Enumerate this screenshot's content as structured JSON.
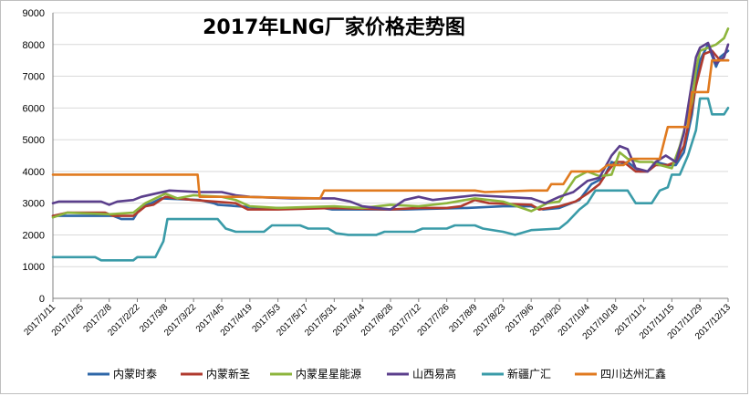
{
  "chart_data": {
    "type": "line",
    "title": "2017年LNG厂家价格走势图",
    "xlabel": "",
    "ylabel": "",
    "ylim": [
      0,
      9000
    ],
    "yticks": [
      0,
      1000,
      2000,
      3000,
      4000,
      5000,
      6000,
      7000,
      8000,
      9000
    ],
    "x_range": [
      "2017/1/11",
      "2017/12/13"
    ],
    "x_ticks": [
      "2017/1/11",
      "2017/1/25",
      "2017/2/8",
      "2017/2/22",
      "2017/3/8",
      "2017/3/22",
      "2017/4/5",
      "2017/4/19",
      "2017/5/3",
      "2017/5/17",
      "2017/5/31",
      "2017/6/14",
      "2017/6/28",
      "2017/7/12",
      "2017/7/26",
      "2017/8/9",
      "2017/8/23",
      "2017/9/6",
      "2017/9/20",
      "2017/10/4",
      "2017/10/18",
      "2017/11/1",
      "2017/11/15",
      "2017/11/29",
      "2017/12/13"
    ],
    "grid": "horizontal",
    "legend_position": "bottom",
    "series": [
      {
        "name": "内蒙时泰",
        "color": "#2e67a8",
        "points": [
          [
            "2017/1/11",
            2600
          ],
          [
            "2017/2/10",
            2600
          ],
          [
            "2017/2/14",
            2500
          ],
          [
            "2017/2/20",
            2500
          ],
          [
            "2017/2/24",
            2900
          ],
          [
            "2017/3/1",
            3000
          ],
          [
            "2017/3/6",
            3150
          ],
          [
            "2017/3/25",
            3100
          ],
          [
            "2017/4/1",
            3000
          ],
          [
            "2017/4/3",
            2950
          ],
          [
            "2017/4/25",
            2850
          ],
          [
            "2017/5/25",
            2850
          ],
          [
            "2017/5/30",
            2800
          ],
          [
            "2017/6/10",
            2800
          ],
          [
            "2017/7/5",
            2800
          ],
          [
            "2017/8/5",
            2850
          ],
          [
            "2017/8/23",
            2900
          ],
          [
            "2017/9/6",
            2900
          ],
          [
            "2017/9/12",
            2800
          ],
          [
            "2017/9/20",
            2850
          ],
          [
            "2017/9/30",
            3100
          ],
          [
            "2017/10/6",
            3600
          ],
          [
            "2017/10/12",
            3800
          ],
          [
            "2017/10/16",
            4300
          ],
          [
            "2017/10/20",
            4200
          ],
          [
            "2017/10/24",
            4300
          ],
          [
            "2017/10/30",
            4000
          ],
          [
            "2017/11/3",
            4000
          ],
          [
            "2017/11/7",
            4300
          ],
          [
            "2017/11/13",
            4200
          ],
          [
            "2017/11/17",
            4200
          ],
          [
            "2017/11/21",
            4600
          ],
          [
            "2017/11/25",
            5800
          ],
          [
            "2017/11/27",
            6800
          ],
          [
            "2017/11/29",
            7500
          ],
          [
            "2017/12/3",
            8000
          ],
          [
            "2017/12/7",
            7300
          ],
          [
            "2017/12/9",
            7600
          ],
          [
            "2017/12/13",
            7800
          ]
        ]
      },
      {
        "name": "内蒙新圣",
        "color": "#b03a2e",
        "points": [
          [
            "2017/1/11",
            2600
          ],
          [
            "2017/1/18",
            2700
          ],
          [
            "2017/2/6",
            2700
          ],
          [
            "2017/2/10",
            2600
          ],
          [
            "2017/2/20",
            2600
          ],
          [
            "2017/2/26",
            2900
          ],
          [
            "2017/3/2",
            2950
          ],
          [
            "2017/3/8",
            3200
          ],
          [
            "2017/3/14",
            3150
          ],
          [
            "2017/3/22",
            3100
          ],
          [
            "2017/4/12",
            3000
          ],
          [
            "2017/4/18",
            2800
          ],
          [
            "2017/5/3",
            2800
          ],
          [
            "2017/5/31",
            2850
          ],
          [
            "2017/6/28",
            2800
          ],
          [
            "2017/7/12",
            2850
          ],
          [
            "2017/7/26",
            2850
          ],
          [
            "2017/8/2",
            2900
          ],
          [
            "2017/8/9",
            3100
          ],
          [
            "2017/8/16",
            3000
          ],
          [
            "2017/9/6",
            2950
          ],
          [
            "2017/9/10",
            2800
          ],
          [
            "2017/9/20",
            2900
          ],
          [
            "2017/9/28",
            3050
          ],
          [
            "2017/10/4",
            3300
          ],
          [
            "2017/10/10",
            3600
          ],
          [
            "2017/10/14",
            4000
          ],
          [
            "2017/10/18",
            4300
          ],
          [
            "2017/10/22",
            4300
          ],
          [
            "2017/10/28",
            4000
          ],
          [
            "2017/11/3",
            4000
          ],
          [
            "2017/11/7",
            4200
          ],
          [
            "2017/11/13",
            4200
          ],
          [
            "2017/11/17",
            4300
          ],
          [
            "2017/11/21",
            4800
          ],
          [
            "2017/11/25",
            6000
          ],
          [
            "2017/11/27",
            6700
          ],
          [
            "2017/11/29",
            7200
          ],
          [
            "2017/12/1",
            7700
          ],
          [
            "2017/12/5",
            7800
          ],
          [
            "2017/12/9",
            7500
          ],
          [
            "2017/12/13",
            7500
          ]
        ]
      },
      {
        "name": "内蒙星星能源",
        "color": "#8db53c",
        "points": [
          [
            "2017/1/11",
            2550
          ],
          [
            "2017/1/18",
            2700
          ],
          [
            "2017/2/8",
            2650
          ],
          [
            "2017/2/20",
            2700
          ],
          [
            "2017/2/26",
            3000
          ],
          [
            "2017/3/8",
            3300
          ],
          [
            "2017/3/14",
            3150
          ],
          [
            "2017/3/22",
            3250
          ],
          [
            "2017/4/5",
            3200
          ],
          [
            "2017/4/12",
            3100
          ],
          [
            "2017/4/19",
            2900
          ],
          [
            "2017/5/3",
            2850
          ],
          [
            "2017/5/31",
            2900
          ],
          [
            "2017/6/14",
            2850
          ],
          [
            "2017/6/28",
            2950
          ],
          [
            "2017/7/12",
            2900
          ],
          [
            "2017/7/26",
            3000
          ],
          [
            "2017/8/9",
            3150
          ],
          [
            "2017/8/16",
            3100
          ],
          [
            "2017/8/23",
            3050
          ],
          [
            "2017/9/6",
            2750
          ],
          [
            "2017/9/14",
            3000
          ],
          [
            "2017/9/20",
            3050
          ],
          [
            "2017/9/28",
            3800
          ],
          [
            "2017/10/4",
            4000
          ],
          [
            "2017/10/10",
            3850
          ],
          [
            "2017/10/16",
            3900
          ],
          [
            "2017/10/20",
            4600
          ],
          [
            "2017/10/24",
            4400
          ],
          [
            "2017/10/30",
            4300
          ],
          [
            "2017/11/5",
            4300
          ],
          [
            "2017/11/9",
            4200
          ],
          [
            "2017/11/15",
            4100
          ],
          [
            "2017/11/19",
            4800
          ],
          [
            "2017/11/25",
            6200
          ],
          [
            "2017/11/27",
            7200
          ],
          [
            "2017/11/29",
            7800
          ],
          [
            "2017/12/3",
            7900
          ],
          [
            "2017/12/7",
            8000
          ],
          [
            "2017/12/11",
            8200
          ],
          [
            "2017/12/13",
            8500
          ]
        ]
      },
      {
        "name": "山西易高",
        "color": "#5b3f8c",
        "points": [
          [
            "2017/1/11",
            3000
          ],
          [
            "2017/1/14",
            3050
          ],
          [
            "2017/2/4",
            3050
          ],
          [
            "2017/2/8",
            2950
          ],
          [
            "2017/2/12",
            3050
          ],
          [
            "2017/2/20",
            3100
          ],
          [
            "2017/2/24",
            3200
          ],
          [
            "2017/3/3",
            3300
          ],
          [
            "2017/3/10",
            3400
          ],
          [
            "2017/3/25",
            3350
          ],
          [
            "2017/4/5",
            3350
          ],
          [
            "2017/4/12",
            3250
          ],
          [
            "2017/4/19",
            3200
          ],
          [
            "2017/5/10",
            3150
          ],
          [
            "2017/5/31",
            3150
          ],
          [
            "2017/6/8",
            3050
          ],
          [
            "2017/6/14",
            2900
          ],
          [
            "2017/6/28",
            2800
          ],
          [
            "2017/7/5",
            3100
          ],
          [
            "2017/7/12",
            3200
          ],
          [
            "2017/7/19",
            3100
          ],
          [
            "2017/7/26",
            3150
          ],
          [
            "2017/8/2",
            3200
          ],
          [
            "2017/8/9",
            3250
          ],
          [
            "2017/8/23",
            3200
          ],
          [
            "2017/9/6",
            3150
          ],
          [
            "2017/9/13",
            3000
          ],
          [
            "2017/9/20",
            3200
          ],
          [
            "2017/9/27",
            3350
          ],
          [
            "2017/10/4",
            3700
          ],
          [
            "2017/10/10",
            3800
          ],
          [
            "2017/10/16",
            4500
          ],
          [
            "2017/10/20",
            4800
          ],
          [
            "2017/10/24",
            4700
          ],
          [
            "2017/10/28",
            4100
          ],
          [
            "2017/11/3",
            4000
          ],
          [
            "2017/11/7",
            4300
          ],
          [
            "2017/11/12",
            4500
          ],
          [
            "2017/11/17",
            4300
          ],
          [
            "2017/11/21",
            5200
          ],
          [
            "2017/11/25",
            6800
          ],
          [
            "2017/11/27",
            7600
          ],
          [
            "2017/11/29",
            7900
          ],
          [
            "2017/12/3",
            8050
          ],
          [
            "2017/12/7",
            7400
          ],
          [
            "2017/12/11",
            7600
          ],
          [
            "2017/12/13",
            8000
          ]
        ]
      },
      {
        "name": "新疆广汇",
        "color": "#3a9ba8",
        "points": [
          [
            "2017/1/11",
            1300
          ],
          [
            "2017/2/1",
            1300
          ],
          [
            "2017/2/4",
            1200
          ],
          [
            "2017/2/20",
            1200
          ],
          [
            "2017/2/22",
            1300
          ],
          [
            "2017/3/3",
            1300
          ],
          [
            "2017/3/7",
            1800
          ],
          [
            "2017/3/9",
            2500
          ],
          [
            "2017/3/22",
            2500
          ],
          [
            "2017/4/3",
            2500
          ],
          [
            "2017/4/7",
            2200
          ],
          [
            "2017/4/12",
            2100
          ],
          [
            "2017/4/26",
            2100
          ],
          [
            "2017/4/30",
            2300
          ],
          [
            "2017/5/14",
            2300
          ],
          [
            "2017/5/18",
            2200
          ],
          [
            "2017/5/28",
            2200
          ],
          [
            "2017/6/1",
            2050
          ],
          [
            "2017/6/7",
            2000
          ],
          [
            "2017/6/21",
            2000
          ],
          [
            "2017/6/25",
            2100
          ],
          [
            "2017/7/10",
            2100
          ],
          [
            "2017/7/14",
            2200
          ],
          [
            "2017/7/26",
            2200
          ],
          [
            "2017/7/30",
            2300
          ],
          [
            "2017/8/9",
            2300
          ],
          [
            "2017/8/13",
            2200
          ],
          [
            "2017/8/23",
            2100
          ],
          [
            "2017/8/29",
            2000
          ],
          [
            "2017/9/6",
            2150
          ],
          [
            "2017/9/20",
            2200
          ],
          [
            "2017/9/24",
            2400
          ],
          [
            "2017/9/30",
            2800
          ],
          [
            "2017/10/4",
            3000
          ],
          [
            "2017/10/8",
            3400
          ],
          [
            "2017/10/24",
            3400
          ],
          [
            "2017/10/28",
            3000
          ],
          [
            "2017/11/5",
            3000
          ],
          [
            "2017/11/9",
            3400
          ],
          [
            "2017/11/13",
            3500
          ],
          [
            "2017/11/15",
            3900
          ],
          [
            "2017/11/19",
            3900
          ],
          [
            "2017/11/23",
            4500
          ],
          [
            "2017/11/27",
            5300
          ],
          [
            "2017/11/29",
            6300
          ],
          [
            "2017/12/3",
            6300
          ],
          [
            "2017/12/5",
            5800
          ],
          [
            "2017/12/11",
            5800
          ],
          [
            "2017/12/13",
            6000
          ]
        ]
      },
      {
        "name": "四川达州汇鑫",
        "color": "#e07a1f",
        "points": [
          [
            "2017/1/11",
            3900
          ],
          [
            "2017/3/24",
            3900
          ],
          [
            "2017/3/25",
            3200
          ],
          [
            "2017/4/14",
            3200
          ],
          [
            "2017/5/24",
            3150
          ],
          [
            "2017/5/26",
            3400
          ],
          [
            "2017/6/30",
            3400
          ],
          [
            "2017/8/9",
            3400
          ],
          [
            "2017/8/14",
            3350
          ],
          [
            "2017/9/6",
            3400
          ],
          [
            "2017/9/14",
            3400
          ],
          [
            "2017/9/16",
            3600
          ],
          [
            "2017/9/22",
            3600
          ],
          [
            "2017/9/26",
            4000
          ],
          [
            "2017/10/10",
            4000
          ],
          [
            "2017/10/14",
            4200
          ],
          [
            "2017/10/22",
            4200
          ],
          [
            "2017/10/26",
            4400
          ],
          [
            "2017/11/9",
            4400
          ],
          [
            "2017/11/13",
            5400
          ],
          [
            "2017/11/23",
            5400
          ],
          [
            "2017/11/25",
            6500
          ],
          [
            "2017/12/3",
            6500
          ],
          [
            "2017/12/5",
            7500
          ],
          [
            "2017/12/13",
            7500
          ]
        ]
      }
    ]
  }
}
